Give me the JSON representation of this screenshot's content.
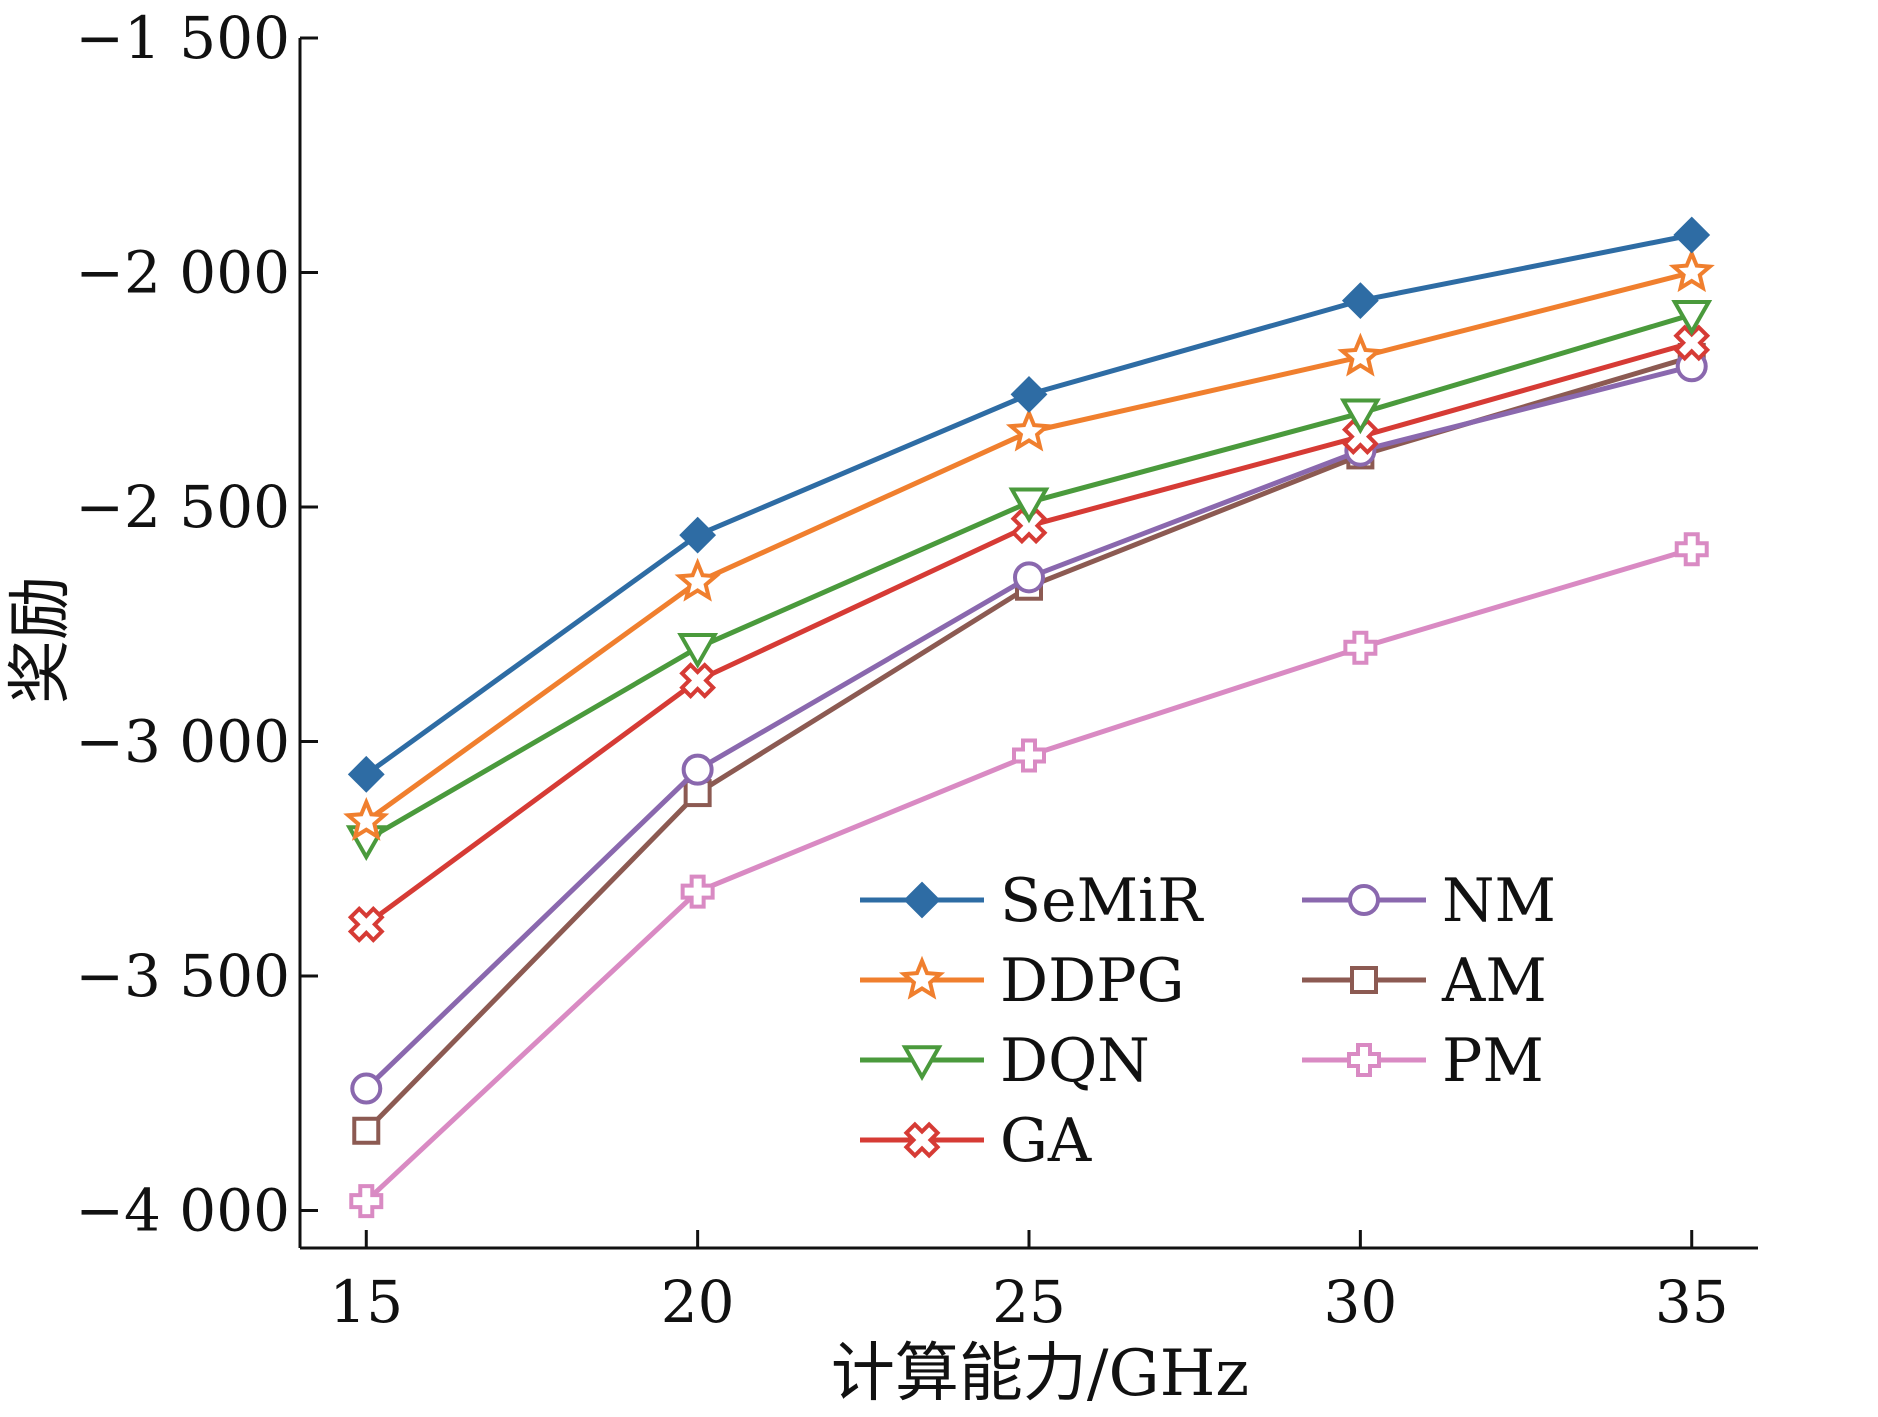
{
  "chart_data": {
    "type": "line",
    "xlabel": "计算能力/GHz",
    "ylabel": "奖励",
    "x": [
      15,
      20,
      25,
      30,
      35
    ],
    "xlim": [
      14,
      36
    ],
    "ylim": [
      -4080,
      -1500
    ],
    "xticks": [
      15,
      20,
      25,
      30,
      35
    ],
    "xtick_labels": [
      "15",
      "20",
      "25",
      "30",
      "35"
    ],
    "yticks": [
      -1500,
      -2000,
      -2500,
      -3000,
      -3500,
      -4000
    ],
    "ytick_labels": [
      "−1 500",
      "−2 000",
      "−2 500",
      "−3 000",
      "−3 500",
      "−4 000"
    ],
    "grid": false,
    "legend_position": "bottom-right",
    "series": [
      {
        "name": "SeMiR",
        "marker": "diamond",
        "color": "#2E6CA4",
        "values": [
          -3070,
          -2560,
          -2260,
          -2060,
          -1920
        ]
      },
      {
        "name": "DDPG",
        "marker": "star",
        "color": "#F07F2E",
        "values": [
          -3170,
          -2660,
          -2340,
          -2180,
          -2000
        ]
      },
      {
        "name": "DQN",
        "marker": "triangle-down",
        "color": "#4A9A3C",
        "values": [
          -3210,
          -2800,
          -2490,
          -2300,
          -2090
        ]
      },
      {
        "name": "GA",
        "marker": "x-cross",
        "color": "#D63B35",
        "values": [
          -3390,
          -2870,
          -2540,
          -2350,
          -2150
        ]
      },
      {
        "name": "NM",
        "marker": "circle",
        "color": "#8A68AE",
        "values": [
          -3740,
          -3060,
          -2650,
          -2380,
          -2200
        ]
      },
      {
        "name": "AM",
        "marker": "square",
        "color": "#8C5A52",
        "values": [
          -3830,
          -3110,
          -2670,
          -2390,
          -2180
        ]
      },
      {
        "name": "PM",
        "marker": "plus",
        "color": "#D98AC3",
        "values": [
          -3980,
          -3320,
          -3030,
          -2800,
          -2590
        ]
      }
    ]
  }
}
